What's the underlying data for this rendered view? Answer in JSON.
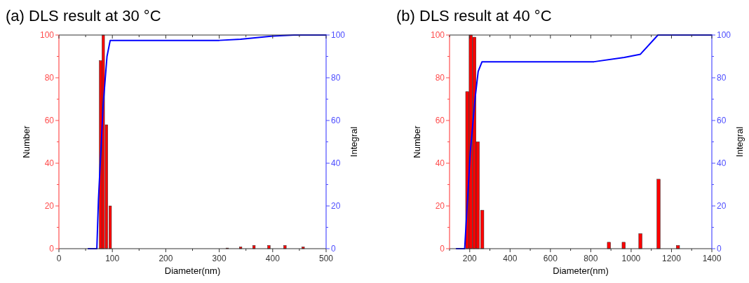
{
  "chart_data": [
    {
      "type": "bar",
      "title": "(a) DLS result at 30 °C",
      "xlabel": "Diameter(nm)",
      "ylabel": "Number",
      "y2label": "Integral",
      "xlim": [
        0,
        500
      ],
      "xticks": [
        0,
        100,
        200,
        300,
        400,
        500
      ],
      "ylim": [
        0,
        100
      ],
      "yticks": [
        0,
        20,
        40,
        60,
        80,
        100
      ],
      "y2lim": [
        0,
        100
      ],
      "y2ticks": [
        0,
        20,
        40,
        60,
        80,
        100
      ],
      "grid": false,
      "series": [
        {
          "color": "#ff0000",
          "x": [
            78,
            83,
            89,
            96,
            315,
            340,
            365,
            393,
            423,
            457
          ],
          "values": [
            88,
            100,
            58,
            20,
            0.3,
            0.8,
            1.5,
            1.5,
            1.5,
            0.8
          ]
        },
        {
          "type": "line",
          "axis": "y2",
          "color": "#0000ff",
          "x": [
            55,
            71,
            74,
            83,
            90,
            96,
            300,
            340,
            400,
            440,
            500
          ],
          "values": [
            0,
            0,
            23,
            68,
            90,
            97.5,
            97.5,
            98,
            99.5,
            100,
            100
          ]
        }
      ]
    },
    {
      "type": "bar",
      "title": "(b) DLS result at 40 °C",
      "xlabel": "Diameter(nm)",
      "ylabel": "Number",
      "y2label": "Integral",
      "xlim": [
        100,
        1400
      ],
      "xticks": [
        200,
        400,
        600,
        800,
        1000,
        1200,
        1400
      ],
      "ylim": [
        0,
        100
      ],
      "yticks": [
        0,
        20,
        40,
        60,
        80,
        100
      ],
      "y2lim": [
        0,
        100
      ],
      "y2ticks": [
        0,
        20,
        40,
        60,
        80,
        100
      ],
      "grid": false,
      "series": [
        {
          "color": "#ff0000",
          "x": [
            188,
            205,
            223,
            240,
            262,
            890,
            963,
            1046,
            1136,
            1232
          ],
          "values": [
            73.5,
            100,
            99,
            50,
            18,
            3,
            3,
            7,
            32.5,
            1.5
          ]
        },
        {
          "type": "line",
          "axis": "y2",
          "color": "#0000ff",
          "x": [
            134,
            175,
            203,
            227,
            242,
            261,
            816,
            966,
            1046,
            1133,
            1400
          ],
          "values": [
            0,
            0,
            45.5,
            70.7,
            83,
            87.5,
            87.5,
            89.5,
            91,
            100,
            100
          ]
        }
      ]
    }
  ]
}
